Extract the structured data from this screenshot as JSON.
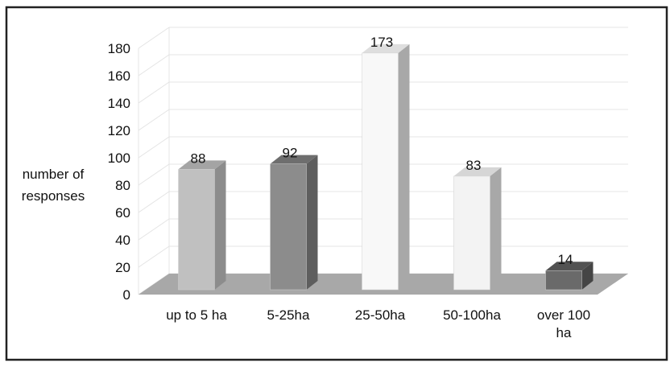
{
  "chart_data": {
    "type": "bar",
    "title": "",
    "xlabel": "",
    "ylabel_lines": [
      "number of",
      "responses"
    ],
    "categories": [
      {
        "lines": [
          "up to 5 ha"
        ]
      },
      {
        "lines": [
          "5-25ha"
        ]
      },
      {
        "lines": [
          "25-50ha"
        ]
      },
      {
        "lines": [
          "50-100ha"
        ]
      },
      {
        "lines": [
          "over 100",
          "ha"
        ]
      }
    ],
    "values": [
      88,
      92,
      173,
      83,
      14
    ],
    "data_labels": [
      "88",
      "92",
      "173",
      "83",
      "14"
    ],
    "y_ticks": [
      "0",
      "20",
      "40",
      "60",
      "80",
      "100",
      "120",
      "140",
      "160",
      "180"
    ],
    "ylim": [
      0,
      180
    ],
    "grid": true,
    "legend": "none",
    "style": "3d-column",
    "colors": {
      "bars": [
        {
          "front": "#c0c0c0",
          "side": "#8c8c8c",
          "top": "#a4a4a4"
        },
        {
          "front": "#8c8c8c",
          "side": "#5e5e5e",
          "top": "#6e6e6e"
        },
        {
          "front": "#f8f8f8",
          "side": "#a8a8a8",
          "top": "#dedede"
        },
        {
          "front": "#f3f3f3",
          "side": "#a8a8a8",
          "top": "#d6d6d6"
        },
        {
          "front": "#6a6a6a",
          "side": "#454545",
          "top": "#525252"
        }
      ],
      "floor": "#a8a8a8",
      "grid": "#e4e4e4",
      "frame": "#222222"
    }
  }
}
